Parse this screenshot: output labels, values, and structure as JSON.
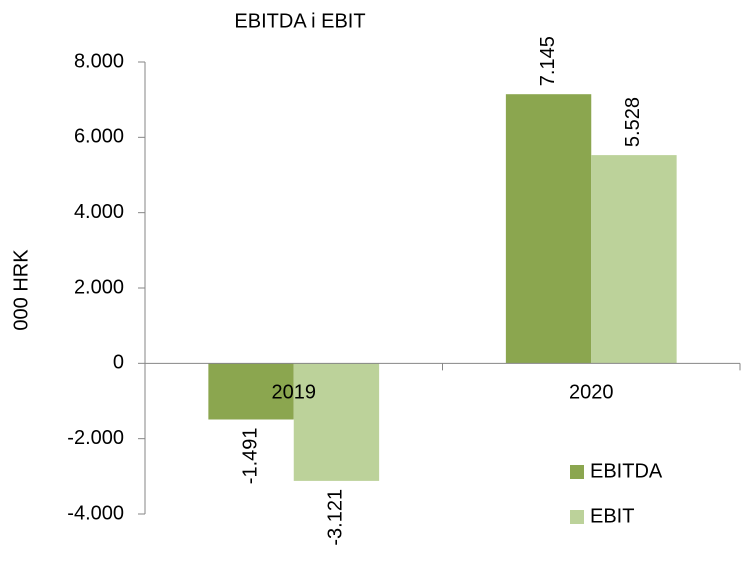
{
  "chart_data": {
    "type": "bar",
    "title": "EBITDA i EBIT",
    "y_label": "000 HRK",
    "categories": [
      "2019",
      "2020"
    ],
    "series": [
      {
        "name": "EBITDA",
        "color": "#8ba64f",
        "values": [
          -1491,
          7145
        ],
        "value_labels": [
          "-1.491",
          "7.145"
        ]
      },
      {
        "name": "EBIT",
        "color": "#bcd29a",
        "values": [
          -3121,
          5528
        ],
        "value_labels": [
          "-3.121",
          "5.528"
        ]
      }
    ],
    "ylim": [
      -4000,
      8000
    ],
    "yticks": [
      {
        "value": -4000,
        "label": "-4.000"
      },
      {
        "value": -2000,
        "label": "-2.000"
      },
      0,
      {
        "value": 2000,
        "label": "2.000"
      },
      {
        "value": 4000,
        "label": "4.000"
      },
      {
        "value": 6000,
        "label": "6.000"
      },
      {
        "value": 8000,
        "label": "8.000"
      }
    ]
  }
}
